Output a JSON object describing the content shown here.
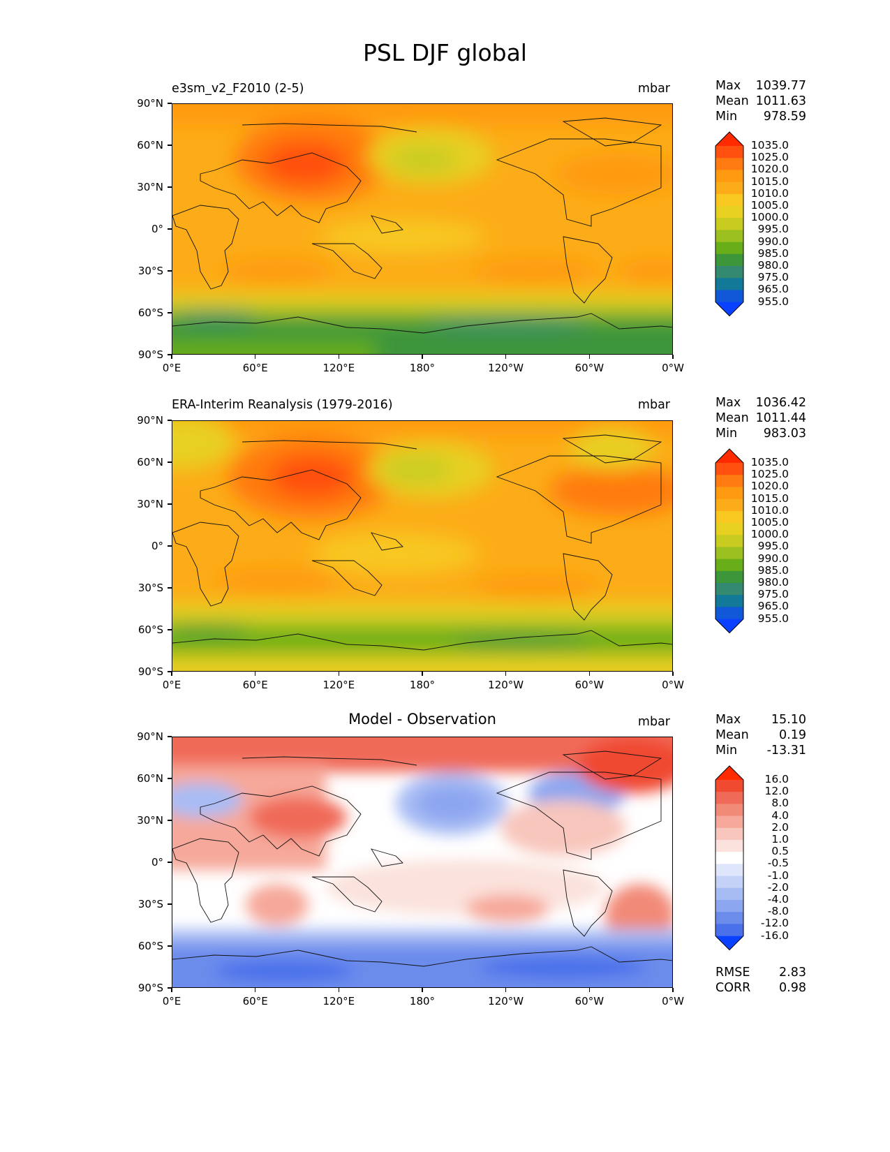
{
  "figure_title": "PSL DJF global",
  "lat_ticks": [
    "90°N",
    "60°N",
    "30°N",
    "0°",
    "30°S",
    "60°S",
    "90°S"
  ],
  "lon_ticks": [
    "0°E",
    "60°E",
    "120°E",
    "180°",
    "120°W",
    "60°W",
    "0°W"
  ],
  "panels": [
    {
      "left_title": "e3sm_v2_F2010 (2-5)",
      "center_title": "",
      "units": "mbar",
      "stats": [
        {
          "label": "Max",
          "value": "1039.77"
        },
        {
          "label": "Mean",
          "value": "1011.63"
        },
        {
          "label": "Min",
          "value": "978.59"
        }
      ],
      "colorbar_levels": [
        "1035.0",
        "1025.0",
        "1020.0",
        "1015.0",
        "1010.0",
        "1005.0",
        "1000.0",
        "995.0",
        "990.0",
        "985.0",
        "980.0",
        "975.0",
        "965.0",
        "955.0"
      ],
      "colorbar_colors": [
        "#ff2a00",
        "#ff5010",
        "#ff7a10",
        "#ff9a10",
        "#fcac18",
        "#f8c820",
        "#e8d020",
        "#c8cc20",
        "#9cc020",
        "#68ae18",
        "#3e963a",
        "#348a70",
        "#127a98",
        "#1058d8",
        "#0a40ff"
      ]
    },
    {
      "left_title": "ERA-Interim Reanalysis (1979-2016)",
      "center_title": "",
      "units": "mbar",
      "stats": [
        {
          "label": "Max",
          "value": "1036.42"
        },
        {
          "label": "Mean",
          "value": "1011.44"
        },
        {
          "label": "Min",
          "value": "983.03"
        }
      ],
      "colorbar_levels": [
        "1035.0",
        "1025.0",
        "1020.0",
        "1015.0",
        "1010.0",
        "1005.0",
        "1000.0",
        "995.0",
        "990.0",
        "985.0",
        "980.0",
        "975.0",
        "965.0",
        "955.0"
      ],
      "colorbar_colors": [
        "#ff2a00",
        "#ff5010",
        "#ff7a10",
        "#ff9a10",
        "#fcac18",
        "#f8c820",
        "#e8d020",
        "#c8cc20",
        "#9cc020",
        "#68ae18",
        "#3e963a",
        "#348a70",
        "#127a98",
        "#1058d8",
        "#0a40ff"
      ]
    },
    {
      "left_title": "",
      "center_title": "Model - Observation",
      "units": "mbar",
      "stats": [
        {
          "label": "Max",
          "value": "15.10"
        },
        {
          "label": "Mean",
          "value": "0.19"
        },
        {
          "label": "Min",
          "value": "-13.31"
        }
      ],
      "extra_stats": [
        {
          "label": "RMSE",
          "value": "2.83"
        },
        {
          "label": "CORR",
          "value": "0.98"
        }
      ],
      "colorbar_levels": [
        "16.0",
        "12.0",
        "8.0",
        "4.0",
        "2.0",
        "1.0",
        "0.5",
        "-0.5",
        "-1.0",
        "-2.0",
        "-4.0",
        "-8.0",
        "-12.0",
        "-16.0"
      ],
      "colorbar_colors": [
        "#ff2a00",
        "#f04a30",
        "#f06a58",
        "#f28a78",
        "#f6a89a",
        "#f8c6bc",
        "#fbe2dc",
        "#ffffff",
        "#dfe6fb",
        "#c4d2f8",
        "#a8bcf4",
        "#8ca6f0",
        "#6c8cec",
        "#4a70ea",
        "#0a40ff"
      ]
    }
  ]
}
